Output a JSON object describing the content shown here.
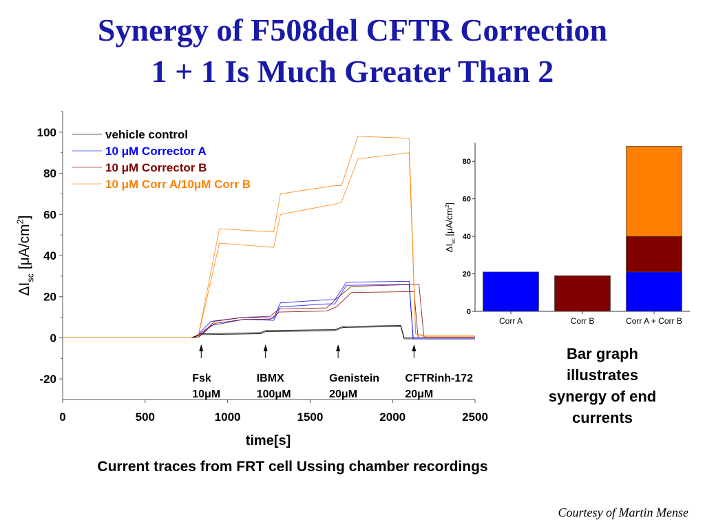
{
  "slide": {
    "title_line_1": "Synergy of F508del CFTR Correction",
    "title_line_2": "1 + 1 Is Much Greater Than 2",
    "caption": "Current traces from FRT cell Ussing chamber recordings",
    "side_note": "Bar graph illustrates synergy of end currents",
    "credit": "Courtesy of Martin Mense"
  },
  "colors": {
    "title": "#1a1aa8",
    "vehicle": "#000000",
    "corrector_a": "#0000ff",
    "corrector_b": "#800000",
    "combo": "#ff8000"
  },
  "chart_data": [
    {
      "type": "line",
      "title": "",
      "xlabel": "time[s]",
      "ylabel": "ΔIsc [μA/cm2]",
      "xlim": [
        0,
        2500
      ],
      "ylim": [
        -30,
        110
      ],
      "xticks": [
        0,
        500,
        1000,
        1500,
        2000,
        2500
      ],
      "yticks": [
        -20,
        0,
        20,
        40,
        60,
        80,
        100
      ],
      "legend_position": "top-left",
      "legend": [
        {
          "label": "vehicle control",
          "color": "#000000"
        },
        {
          "label": "10 μM Corrector A",
          "color": "#0000ff"
        },
        {
          "label": "10 μM Corrector B",
          "color": "#800000"
        },
        {
          "label": "10 μM Corr A/10μM Corr B",
          "color": "#ff8000"
        }
      ],
      "annotations": [
        {
          "x": 840,
          "line1": "Fsk",
          "line2": "10μM"
        },
        {
          "x": 1230,
          "line1": "IBMX",
          "line2": "100μM"
        },
        {
          "x": 1670,
          "line1": "Genistein",
          "line2": "20μM"
        },
        {
          "x": 2130,
          "line1": "CFTRinh-172",
          "line2": "20μM"
        }
      ],
      "series": [
        {
          "color": "#000000",
          "points": [
            [
              0,
              0
            ],
            [
              780,
              0
            ],
            [
              840,
              2
            ],
            [
              1200,
              2.5
            ],
            [
              1230,
              3.5
            ],
            [
              1650,
              4
            ],
            [
              1700,
              5.5
            ],
            [
              2050,
              6
            ],
            [
              2070,
              0
            ],
            [
              2500,
              0
            ]
          ]
        },
        {
          "color": "#000000",
          "points": [
            [
              0,
              0
            ],
            [
              780,
              0
            ],
            [
              840,
              1.5
            ],
            [
              1200,
              2
            ],
            [
              1230,
              3
            ],
            [
              1650,
              3.5
            ],
            [
              1700,
              5
            ],
            [
              2050,
              5.5
            ],
            [
              2070,
              -0.5
            ],
            [
              2500,
              -0.5
            ]
          ]
        },
        {
          "color": "#0000ff",
          "points": [
            [
              0,
              0
            ],
            [
              800,
              0
            ],
            [
              900,
              8
            ],
            [
              1100,
              10
            ],
            [
              1280,
              9.5
            ],
            [
              1320,
              17
            ],
            [
              1600,
              18.5
            ],
            [
              1650,
              18.5
            ],
            [
              1720,
              27
            ],
            [
              2100,
              27.5
            ],
            [
              2125,
              -0.5
            ],
            [
              2500,
              -0.5
            ]
          ]
        },
        {
          "color": "#0000ff",
          "points": [
            [
              0,
              0
            ],
            [
              800,
              0
            ],
            [
              900,
              6
            ],
            [
              1100,
              9
            ],
            [
              1280,
              8.5
            ],
            [
              1320,
              15
            ],
            [
              1600,
              16.5
            ],
            [
              1650,
              16.5
            ],
            [
              1720,
              25.5
            ],
            [
              2100,
              26
            ],
            [
              2125,
              0
            ],
            [
              2500,
              0
            ]
          ]
        },
        {
          "color": "#800000",
          "points": [
            [
              0,
              0
            ],
            [
              820,
              0
            ],
            [
              920,
              7
            ],
            [
              1100,
              9
            ],
            [
              1260,
              9
            ],
            [
              1310,
              12.5
            ],
            [
              1600,
              13
            ],
            [
              1660,
              15
            ],
            [
              1750,
              22
            ],
            [
              2130,
              22.5
            ],
            [
              2155,
              0
            ],
            [
              2500,
              0
            ]
          ]
        },
        {
          "color": "#800000",
          "points": [
            [
              0,
              0
            ],
            [
              820,
              0
            ],
            [
              920,
              8
            ],
            [
              1100,
              10
            ],
            [
              1260,
              10.5
            ],
            [
              1310,
              14
            ],
            [
              1600,
              14.5
            ],
            [
              1660,
              19
            ],
            [
              1750,
              25
            ],
            [
              2160,
              26
            ],
            [
              2190,
              0.5
            ],
            [
              2500,
              0.5
            ]
          ]
        },
        {
          "color": "#ff8000",
          "points": [
            [
              0,
              0
            ],
            [
              820,
              0
            ],
            [
              950,
              53
            ],
            [
              1280,
              51.5
            ],
            [
              1320,
              70
            ],
            [
              1650,
              74
            ],
            [
              1690,
              74
            ],
            [
              1790,
              98
            ],
            [
              2100,
              97
            ],
            [
              2140,
              2
            ],
            [
              2200,
              1
            ],
            [
              2500,
              1
            ]
          ]
        },
        {
          "color": "#ff8000",
          "points": [
            [
              0,
              0
            ],
            [
              820,
              0
            ],
            [
              950,
              46
            ],
            [
              1280,
              44
            ],
            [
              1320,
              60
            ],
            [
              1650,
              65
            ],
            [
              1690,
              66
            ],
            [
              1790,
              87
            ],
            [
              2100,
              90
            ],
            [
              2140,
              2
            ],
            [
              2200,
              0.5
            ],
            [
              2500,
              0.5
            ]
          ]
        }
      ]
    },
    {
      "type": "bar",
      "stacked": true,
      "ylabel": "ΔIsc [μA/cm2]",
      "ylim": [
        0,
        90
      ],
      "yticks": [
        0,
        20,
        40,
        60,
        80
      ],
      "categories": [
        "Corr A",
        "Corr B",
        "Corr A + Corr B"
      ],
      "stacks": [
        [
          {
            "value": 21,
            "color": "#0000ff"
          }
        ],
        [
          {
            "value": 19,
            "color": "#800000"
          }
        ],
        [
          {
            "value": 21,
            "color": "#0000ff"
          },
          {
            "value": 19,
            "color": "#800000"
          },
          {
            "value": 48,
            "color": "#ff8000"
          }
        ]
      ]
    }
  ]
}
